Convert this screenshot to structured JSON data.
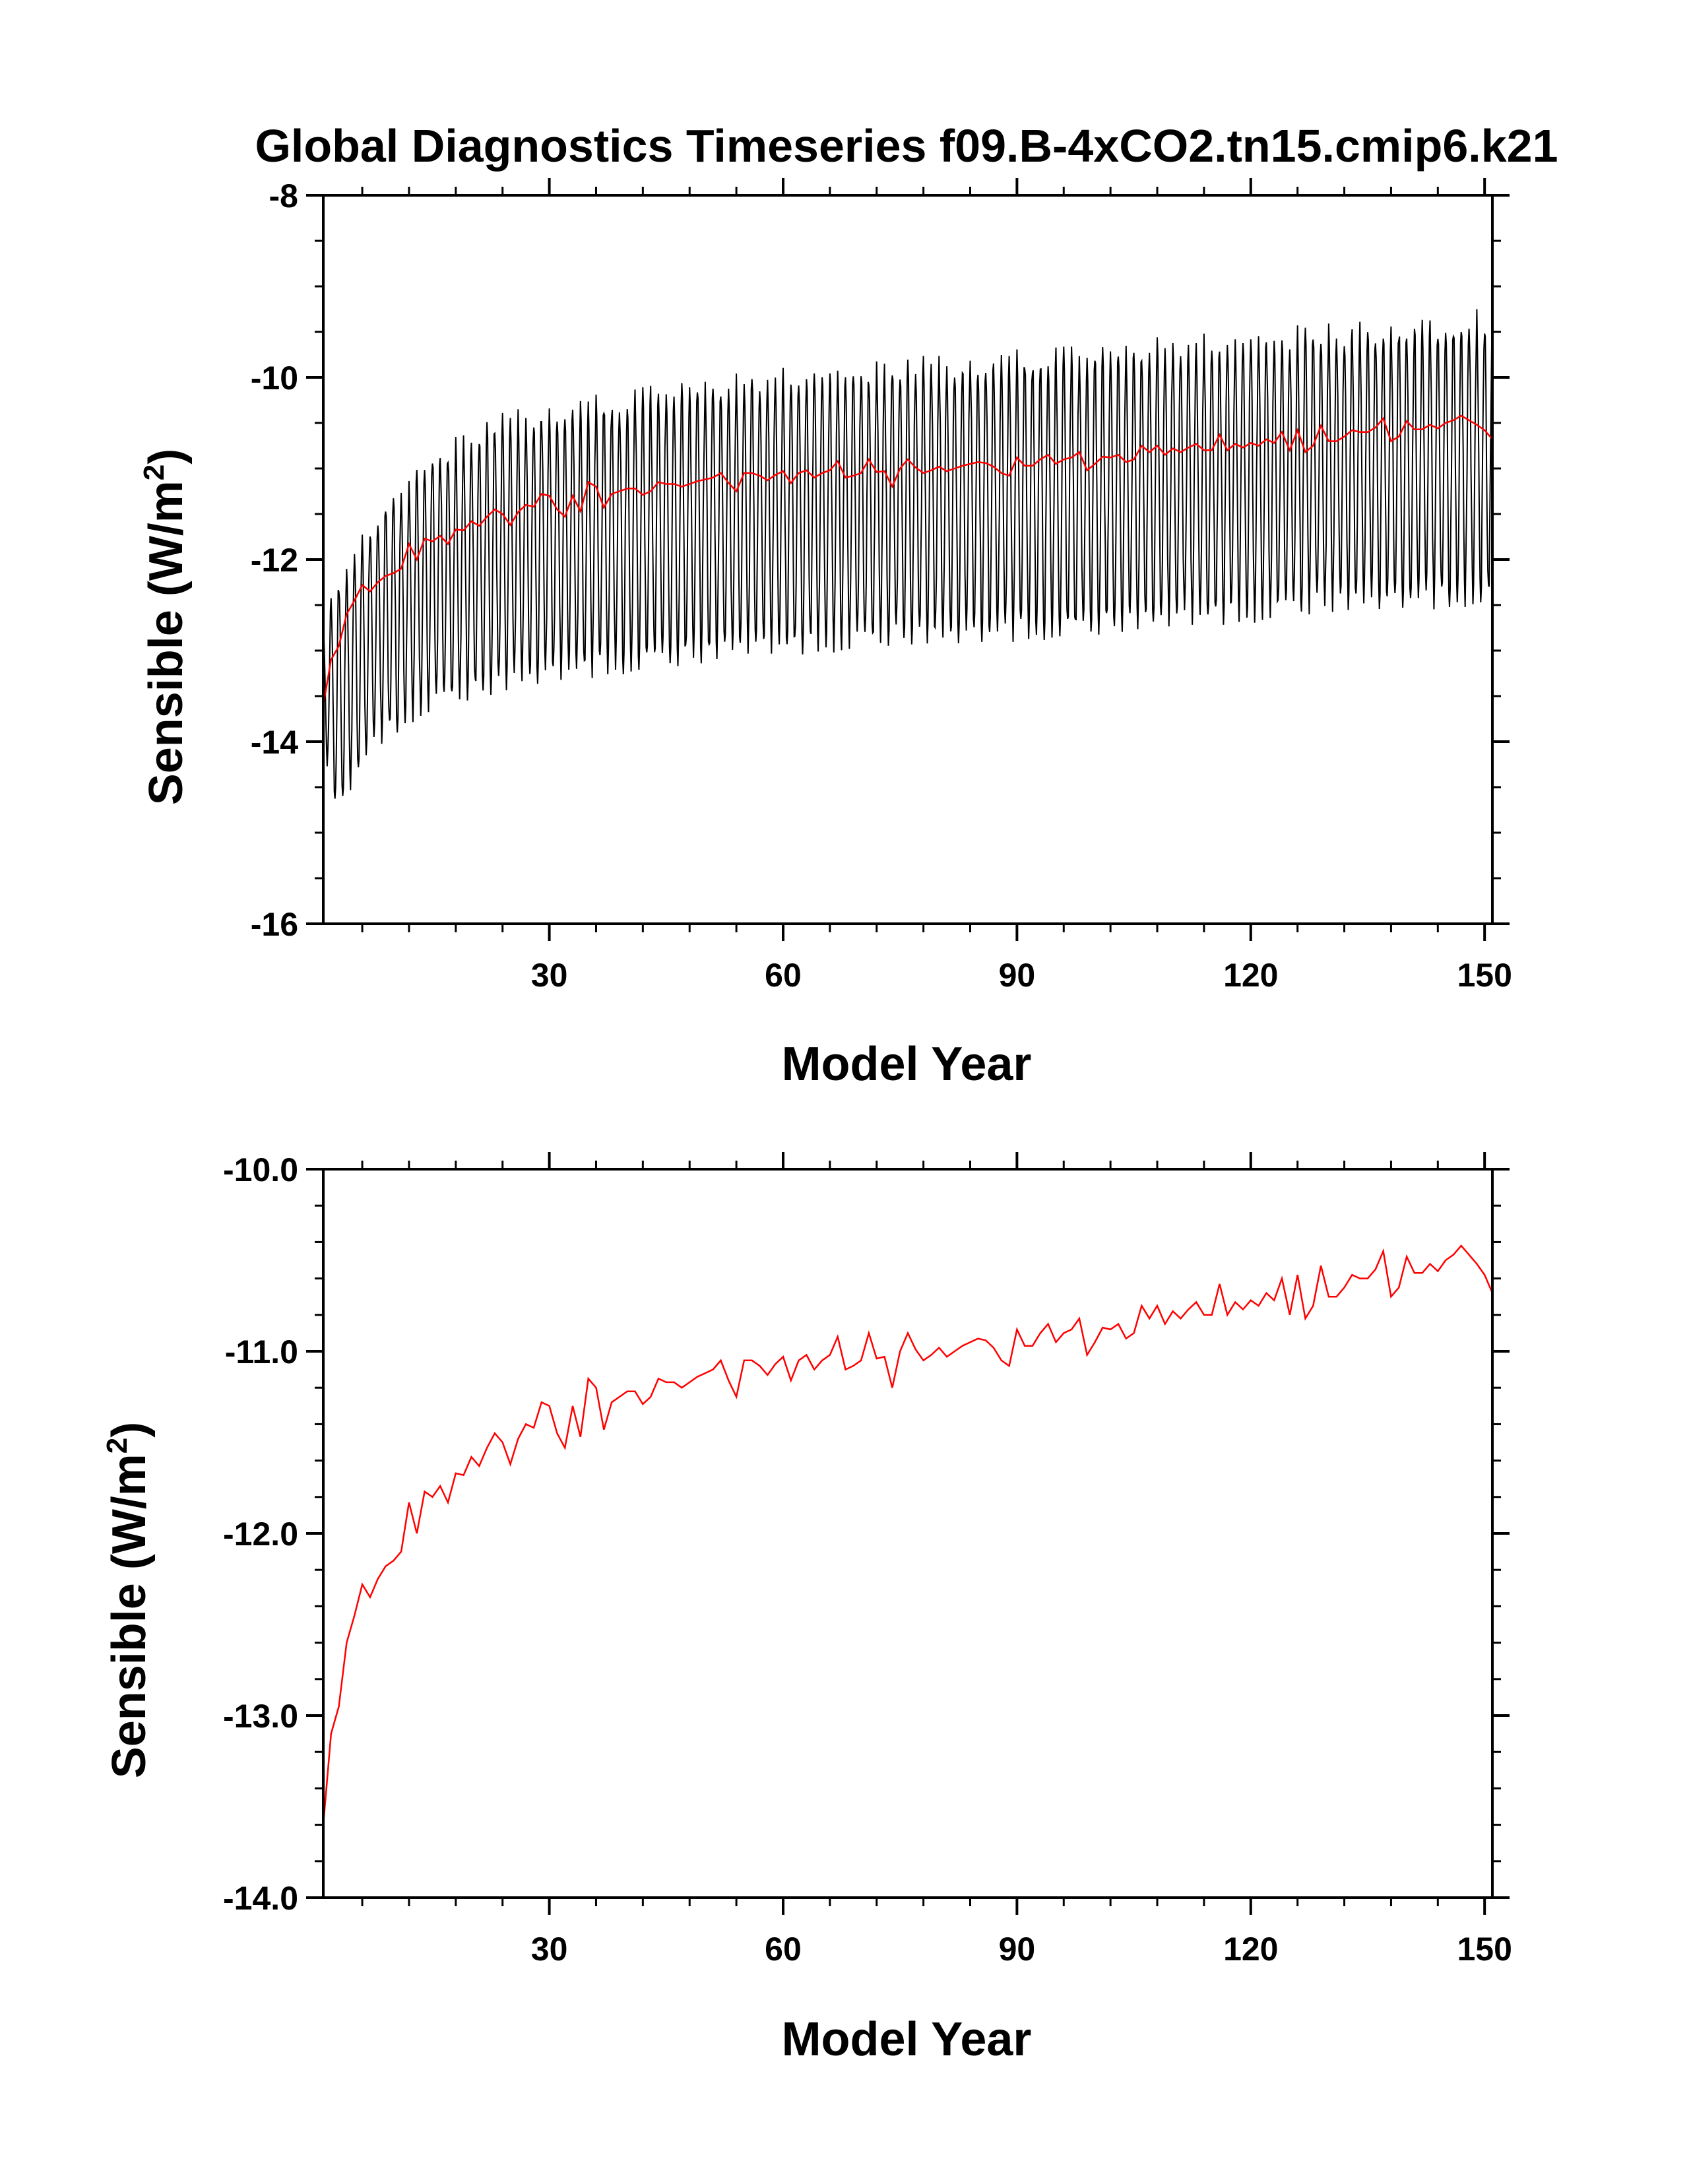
{
  "figure_title": "Global Diagnostics Timeseries f09.B-4xCO2.tn15.cmip6.k21",
  "colors": {
    "monthly": "#000000",
    "annual": "#ff0000",
    "axes": "#000000",
    "background": "#ffffff"
  },
  "chart_data": [
    {
      "type": "line",
      "title": "Global Diagnostics Timeseries f09.B-4xCO2.tn15.cmip6.k21",
      "xlabel": "Model Year",
      "ylabel": "Sensible (W/m²)",
      "ylabel_parts": {
        "main": "Sensible (W/m",
        "sup": "2",
        "end": ")"
      },
      "xlim": [
        1,
        151
      ],
      "ylim": [
        -16,
        -8
      ],
      "xticks": [
        30,
        60,
        90,
        120,
        150
      ],
      "xtick_labels": [
        "30",
        "60",
        "90",
        "120",
        "150"
      ],
      "yticks": [
        -16,
        -14,
        -12,
        -10,
        -8
      ],
      "ytick_labels": [
        "-16",
        "-14",
        "-12",
        "-10",
        "-8"
      ],
      "grid": false,
      "series": [
        {
          "name": "monthly",
          "color": "#000000",
          "description": "monthly values with strong seasonal cycle",
          "envelope": {
            "x": [
              1,
              2,
              3,
              5,
              8,
              10,
              13,
              16,
              20,
              25,
              30,
              35,
              40,
              45,
              50,
              55,
              60,
              70,
              75,
              80,
              90,
              100,
              110,
              120,
              130,
              140,
              145,
              150,
              151
            ],
            "max": [
              -12.8,
              -12.4,
              -12.2,
              -11.9,
              -11.5,
              -11.3,
              -11.0,
              -10.8,
              -10.6,
              -10.4,
              -10.3,
              -10.25,
              -10.2,
              -10.1,
              -10.05,
              -10.0,
              -9.95,
              -9.9,
              -9.85,
              -9.8,
              -9.75,
              -9.7,
              -9.6,
              -9.55,
              -9.45,
              -9.4,
              -9.35,
              -9.3,
              -9.3
            ],
            "min": [
              -13.9,
              -14.6,
              -14.8,
              -14.4,
              -14.0,
              -13.9,
              -13.7,
              -13.6,
              -13.5,
              -13.4,
              -13.3,
              -13.25,
              -13.2,
              -13.15,
              -13.1,
              -13.0,
              -13.0,
              -12.95,
              -12.9,
              -12.9,
              -12.85,
              -12.8,
              -12.7,
              -12.65,
              -12.55,
              -12.5,
              -12.5,
              -12.45,
              -12.45
            ]
          }
        },
        {
          "name": "annual",
          "color": "#ff0000",
          "x": [
            1,
            2,
            3,
            4,
            5,
            6,
            7,
            8,
            9,
            10,
            11,
            12,
            13,
            14,
            15,
            16,
            17,
            18,
            19,
            20,
            21,
            22,
            23,
            24,
            25,
            26,
            27,
            28,
            29,
            30,
            31,
            32,
            33,
            34,
            35,
            36,
            37,
            38,
            39,
            40,
            41,
            42,
            43,
            44,
            45,
            46,
            47,
            48,
            49,
            50,
            51,
            52,
            53,
            54,
            55,
            56,
            57,
            58,
            59,
            60,
            61,
            62,
            63,
            64,
            65,
            66,
            67,
            68,
            69,
            70,
            71,
            72,
            73,
            74,
            75,
            76,
            77,
            78,
            79,
            80,
            81,
            82,
            83,
            84,
            85,
            86,
            87,
            88,
            89,
            90,
            91,
            92,
            93,
            94,
            95,
            96,
            97,
            98,
            99,
            100,
            101,
            102,
            103,
            104,
            105,
            106,
            107,
            108,
            109,
            110,
            111,
            112,
            113,
            114,
            115,
            116,
            117,
            118,
            119,
            120,
            121,
            122,
            123,
            124,
            125,
            126,
            127,
            128,
            129,
            130,
            131,
            132,
            133,
            134,
            135,
            136,
            137,
            138,
            139,
            140,
            141,
            142,
            143,
            144,
            145,
            146,
            147,
            148,
            149,
            150,
            151
          ],
          "y": [
            -13.6,
            -13.1,
            -12.95,
            -12.6,
            -12.45,
            -12.28,
            -12.35,
            -12.25,
            -12.18,
            -12.15,
            -12.1,
            -11.83,
            -12.0,
            -11.77,
            -11.8,
            -11.74,
            -11.83,
            -11.67,
            -11.68,
            -11.58,
            -11.63,
            -11.53,
            -11.45,
            -11.5,
            -11.62,
            -11.48,
            -11.4,
            -11.42,
            -11.28,
            -11.3,
            -11.45,
            -11.53,
            -11.3,
            -11.47,
            -11.15,
            -11.2,
            -11.43,
            -11.28,
            -11.25,
            -11.22,
            -11.22,
            -11.29,
            -11.25,
            -11.15,
            -11.17,
            -11.17,
            -11.2,
            -11.17,
            -11.14,
            -11.12,
            -11.1,
            -11.05,
            -11.16,
            -11.25,
            -11.05,
            -11.05,
            -11.08,
            -11.13,
            -11.07,
            -11.03,
            -11.16,
            -11.05,
            -11.02,
            -11.1,
            -11.05,
            -11.02,
            -10.92,
            -11.1,
            -11.08,
            -11.05,
            -10.9,
            -11.04,
            -11.03,
            -11.2,
            -11.0,
            -10.9,
            -10.99,
            -11.05,
            -11.02,
            -10.98,
            -11.03,
            -11.0,
            -10.97,
            -10.95,
            -10.93,
            -10.94,
            -10.98,
            -11.05,
            -11.08,
            -10.88,
            -10.97,
            -10.97,
            -10.9,
            -10.85,
            -10.95,
            -10.9,
            -10.88,
            -10.82,
            -11.02,
            -10.95,
            -10.87,
            -10.88,
            -10.85,
            -10.93,
            -10.9,
            -10.75,
            -10.82,
            -10.75,
            -10.85,
            -10.78,
            -10.82,
            -10.77,
            -10.73,
            -10.8,
            -10.8,
            -10.63,
            -10.8,
            -10.73,
            -10.77,
            -10.72,
            -10.75,
            -10.68,
            -10.72,
            -10.6,
            -10.8,
            -10.58,
            -10.82,
            -10.75,
            -10.53,
            -10.7,
            -10.7,
            -10.65,
            -10.58,
            -10.6,
            -10.6,
            -10.55,
            -10.45,
            -10.7,
            -10.65,
            -10.48,
            -10.57,
            -10.57,
            -10.52,
            -10.56,
            -10.5,
            -10.47,
            -10.42,
            -10.47,
            -10.52,
            -10.58,
            -10.68
          ]
        }
      ]
    },
    {
      "type": "line",
      "xlabel": "Model Year",
      "ylabel": "Sensible (W/m²)",
      "ylabel_parts": {
        "main": "Sensible (W/m",
        "sup": "2",
        "end": ")"
      },
      "xlim": [
        1,
        151
      ],
      "ylim": [
        -14.0,
        -10.0
      ],
      "xticks": [
        30,
        60,
        90,
        120,
        150
      ],
      "xtick_labels": [
        "30",
        "60",
        "90",
        "120",
        "150"
      ],
      "yticks": [
        -14.0,
        -13.0,
        -12.0,
        -11.0,
        -10.0
      ],
      "ytick_labels": [
        "-14.0",
        "-13.0",
        "-12.0",
        "-11.0",
        "-10.0"
      ],
      "grid": false,
      "series": [
        {
          "name": "annual",
          "color": "#ff0000",
          "same_as": "annual series of top panel"
        }
      ]
    }
  ]
}
